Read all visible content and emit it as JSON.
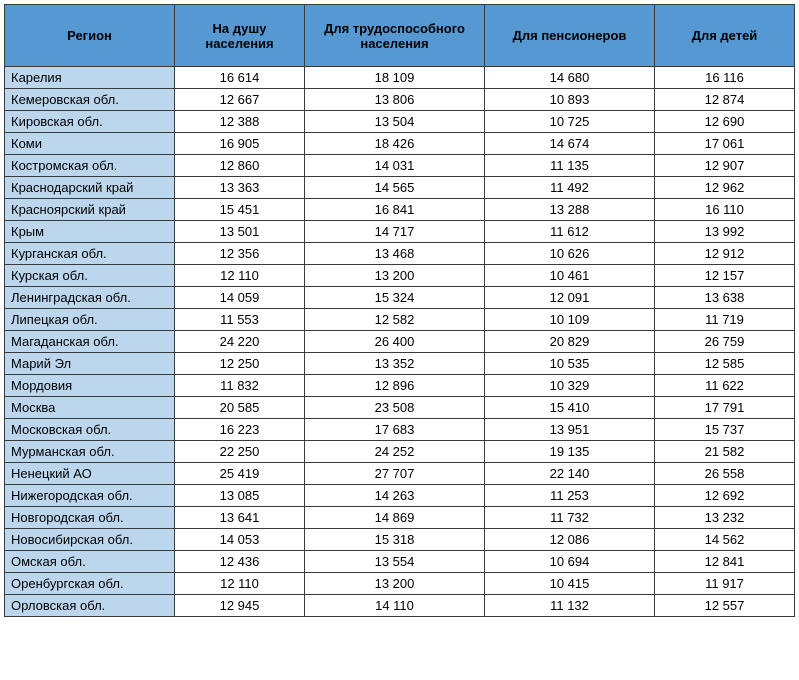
{
  "table": {
    "columns": [
      "Регион",
      "На душу населения",
      "Для трудоспособного населения",
      "Для пенсионеров",
      "Для детей"
    ],
    "rows": [
      [
        "Карелия",
        "16 614",
        "18 109",
        "14 680",
        "16 116"
      ],
      [
        "Кемеровская обл.",
        "12 667",
        "13 806",
        "10 893",
        "12 874"
      ],
      [
        "Кировская обл.",
        "12 388",
        "13 504",
        "10 725",
        "12 690"
      ],
      [
        "Коми",
        "16 905",
        "18 426",
        "14 674",
        "17 061"
      ],
      [
        "Костромская обл.",
        "12 860",
        "14 031",
        "11 135",
        "12 907"
      ],
      [
        "Краснодарский край",
        "13 363",
        "14 565",
        "11 492",
        "12 962"
      ],
      [
        "Красноярский край",
        "15 451",
        "16 841",
        "13 288",
        "16 110"
      ],
      [
        "Крым",
        "13 501",
        "14 717",
        "11 612",
        "13 992"
      ],
      [
        "Курганская обл.",
        "12 356",
        "13 468",
        "10 626",
        "12 912"
      ],
      [
        "Курская обл.",
        "12 110",
        "13 200",
        "10 461",
        "12 157"
      ],
      [
        "Ленинградская обл.",
        "14 059",
        "15 324",
        "12 091",
        "13 638"
      ],
      [
        "Липецкая обл.",
        "11 553",
        "12 582",
        "10 109",
        "11 719"
      ],
      [
        "Магаданская обл.",
        "24 220",
        "26 400",
        "20 829",
        "26 759"
      ],
      [
        "Марий Эл",
        "12 250",
        "13 352",
        "10 535",
        "12 585"
      ],
      [
        "Мордовия",
        "11 832",
        "12 896",
        "10 329",
        "11 622"
      ],
      [
        "Москва",
        "20 585",
        "23 508",
        "15 410",
        "17 791"
      ],
      [
        "Московская обл.",
        "16 223",
        "17 683",
        "13 951",
        "15 737"
      ],
      [
        "Мурманская обл.",
        "22 250",
        "24 252",
        "19 135",
        "21 582"
      ],
      [
        "Ненецкий АО",
        "25 419",
        "27 707",
        "22 140",
        "26 558"
      ],
      [
        "Нижегородская обл.",
        "13 085",
        "14 263",
        "11 253",
        "12 692"
      ],
      [
        "Новгородская обл.",
        "13 641",
        "14 869",
        "11 732",
        "13 232"
      ],
      [
        "Новосибирская обл.",
        "14 053",
        "15 318",
        "12 086",
        "14 562"
      ],
      [
        "Омская обл.",
        "12 436",
        "13 554",
        "10 694",
        "12 841"
      ],
      [
        "Оренбургская обл.",
        "12 110",
        "13 200",
        "10 415",
        "11 917"
      ],
      [
        "Орловская обл.",
        "12 945",
        "14 110",
        "11 132",
        "12 557"
      ]
    ],
    "header_bg": "#5699d2",
    "region_bg": "#bcd6ed",
    "cell_bg": "#ffffff",
    "border_color": "#3a3a3a",
    "font_family": "Arial",
    "header_fontsize": 13,
    "cell_fontsize": 13
  }
}
